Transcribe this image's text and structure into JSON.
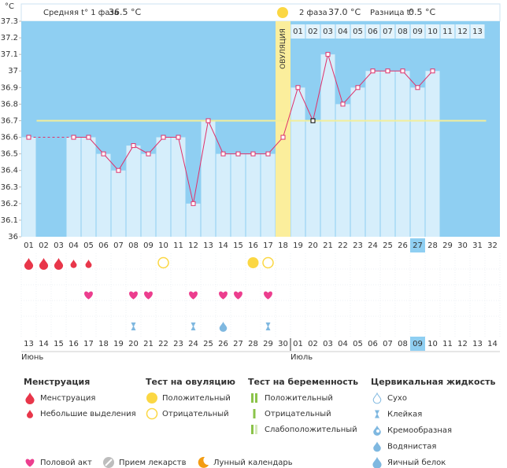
{
  "header": {
    "unit": "°C",
    "phase1_label": "Средняя t° 1 фаза",
    "phase1_value": "36.5 °C",
    "phase2_label": "2 фаза",
    "phase2_value": "37.0 °C",
    "diff_label": "Разница t°",
    "diff_value": "0.5 °C"
  },
  "chart_data": {
    "type": "line",
    "categories": [
      "01",
      "02",
      "03",
      "04",
      "05",
      "06",
      "07",
      "08",
      "09",
      "10",
      "11",
      "12",
      "13",
      "14",
      "15",
      "16",
      "17",
      "18",
      "19",
      "20",
      "21",
      "22",
      "23",
      "24",
      "25",
      "26",
      "27",
      "28",
      "29",
      "30",
      "31",
      "32"
    ],
    "values": [
      36.6,
      null,
      null,
      36.6,
      36.6,
      36.5,
      36.4,
      36.55,
      36.5,
      36.6,
      36.6,
      36.2,
      36.7,
      36.5,
      36.5,
      36.5,
      36.5,
      36.6,
      36.9,
      36.7,
      37.1,
      36.8,
      36.9,
      37.0,
      37.0,
      37.0,
      36.9,
      37.0,
      null,
      null,
      null,
      null
    ],
    "ylim": [
      36,
      37.3
    ],
    "yticks": [
      36,
      36.1,
      36.2,
      36.3,
      36.4,
      36.5,
      36.6,
      36.7,
      36.8,
      36.9,
      37,
      37.1,
      37.2,
      37.3
    ],
    "coverline": 36.7,
    "ovulation_day": "18",
    "ovulation_label": "ОВУЛЯЦИЯ",
    "current_day": "27",
    "marked_day": "20",
    "phase2_days": [
      "01",
      "02",
      "03",
      "04",
      "05",
      "06",
      "07",
      "08",
      "09",
      "10",
      "11",
      "12",
      "13"
    ],
    "line_color": "#e0306a",
    "background_color": "#8fcff2",
    "bar_color": "#d6eefb",
    "ovulation_color": "#fbee9c",
    "coverline_color": "#f2ee9a"
  },
  "symbols": {
    "menstruation_heavy": [
      "01",
      "02",
      "03"
    ],
    "menstruation_light": [
      "04",
      "05"
    ],
    "ovulation_test_positive": [
      "16"
    ],
    "ovulation_test_negative": [
      "10",
      "17"
    ],
    "intercourse": [
      "05",
      "08",
      "09",
      "12",
      "14",
      "15",
      "17"
    ],
    "cervical_sticky": [
      "08",
      "12",
      "17"
    ],
    "cervical_watery": [
      "14"
    ]
  },
  "dates": [
    {
      "label": "13",
      "weekend": false
    },
    {
      "label": "14",
      "weekend": true
    },
    {
      "label": "15",
      "weekend": true
    },
    {
      "label": "16",
      "weekend": false
    },
    {
      "label": "17",
      "weekend": false
    },
    {
      "label": "18",
      "weekend": false
    },
    {
      "label": "19",
      "weekend": false
    },
    {
      "label": "20",
      "weekend": false
    },
    {
      "label": "21",
      "weekend": true
    },
    {
      "label": "22",
      "weekend": true
    },
    {
      "label": "23",
      "weekend": false
    },
    {
      "label": "24",
      "weekend": false
    },
    {
      "label": "25",
      "weekend": false
    },
    {
      "label": "26",
      "weekend": false
    },
    {
      "label": "27",
      "weekend": false
    },
    {
      "label": "28",
      "weekend": true
    },
    {
      "label": "29",
      "weekend": true
    },
    {
      "label": "30",
      "weekend": false
    },
    {
      "label": "01",
      "weekend": false
    },
    {
      "label": "02",
      "weekend": false
    },
    {
      "label": "03",
      "weekend": false
    },
    {
      "label": "04",
      "weekend": false
    },
    {
      "label": "05",
      "weekend": true
    },
    {
      "label": "06",
      "weekend": true
    },
    {
      "label": "07",
      "weekend": false
    },
    {
      "label": "08",
      "weekend": false
    },
    {
      "label": "09",
      "weekend": false
    },
    {
      "label": "10",
      "weekend": false
    },
    {
      "label": "11",
      "weekend": false
    },
    {
      "label": "12",
      "weekend": true
    },
    {
      "label": "13",
      "weekend": true
    },
    {
      "label": "14",
      "weekend": false
    }
  ],
  "months": [
    {
      "label": "Июнь",
      "at": 0
    },
    {
      "label": "Июль",
      "at": 18
    }
  ],
  "legend": {
    "groups": [
      {
        "title": "Менструация",
        "items": [
          {
            "label": "Менструация",
            "icon": "drop-large"
          },
          {
            "label": "Небольшие выделения",
            "icon": "drop-small"
          }
        ]
      },
      {
        "title": "Тест на овуляцию",
        "items": [
          {
            "label": "Положительный",
            "icon": "circle-filled"
          },
          {
            "label": "Отрицательный",
            "icon": "circle-outline"
          }
        ]
      },
      {
        "title": "Тест на беременность",
        "items": [
          {
            "label": "Положительный",
            "icon": "bars-double"
          },
          {
            "label": "Отрицательный",
            "icon": "bar-single"
          },
          {
            "label": "Слабоположительный",
            "icon": "bars-weak"
          }
        ]
      },
      {
        "title": "Цервикальная жидкость",
        "items": [
          {
            "label": "Сухо",
            "icon": "drop-outline"
          },
          {
            "label": "Клейкая",
            "icon": "sticky"
          },
          {
            "label": "Кремообразная",
            "icon": "creamy"
          },
          {
            "label": "Водянистая",
            "icon": "watery"
          },
          {
            "label": "Яичный белок",
            "icon": "eggwhite"
          }
        ]
      }
    ],
    "extra": [
      {
        "label": "Половой акт",
        "icon": "heart"
      },
      {
        "label": "Прием лекарств",
        "icon": "pill"
      },
      {
        "label": "Лунный календарь",
        "icon": "moon"
      }
    ]
  }
}
